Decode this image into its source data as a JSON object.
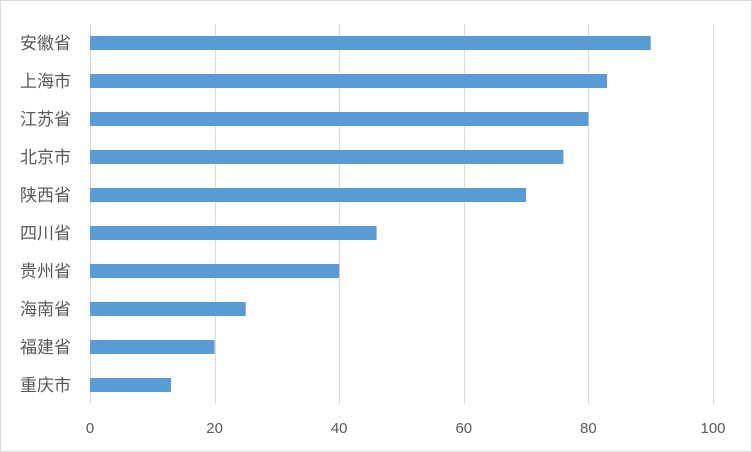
{
  "chart_data": {
    "type": "bar",
    "orientation": "horizontal",
    "categories": [
      "安徽省",
      "上海市",
      "江苏省",
      "北京市",
      "陕西省",
      "四川省",
      "贵州省",
      "海南省",
      "福建省",
      "重庆市"
    ],
    "values": [
      90,
      83,
      80,
      76,
      70,
      46,
      40,
      25,
      20,
      13
    ],
    "xlim": [
      0,
      100
    ],
    "x_ticks": [
      0,
      20,
      40,
      60,
      80,
      100
    ],
    "x_tick_labels": [
      "0",
      "20",
      "40",
      "60",
      "80",
      "100"
    ],
    "title": "",
    "xlabel": "",
    "ylabel": "",
    "grid": "vertical",
    "legend": "none",
    "bar_color": "#5b9bd5",
    "grid_color": "#d9d9d9",
    "text_color": "#595959"
  }
}
